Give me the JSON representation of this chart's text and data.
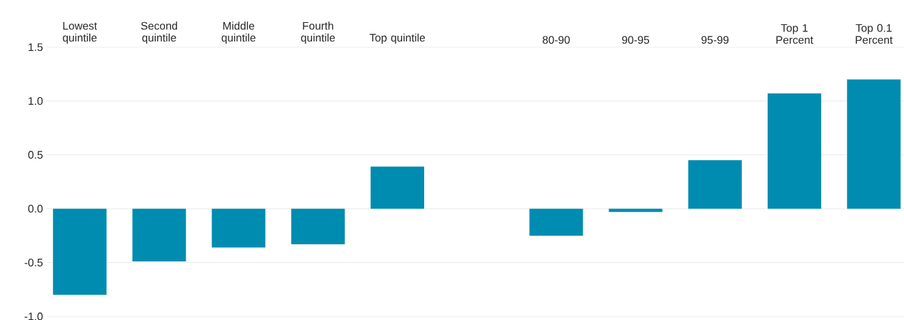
{
  "chart_data": {
    "type": "bar",
    "categories": [
      "Lowest quintile",
      "Second quintile",
      "Middle quintile",
      "Fourth quintile",
      "Top quintile",
      null,
      "80-90",
      "90-95",
      "95-99",
      "Top 1 Percent",
      "Top 0.1 Percent"
    ],
    "values": [
      -0.8,
      -0.49,
      -0.36,
      -0.33,
      0.39,
      null,
      -0.25,
      -0.03,
      0.45,
      1.07,
      1.2
    ],
    "color": "#008cb0",
    "ylim": [
      -1.0,
      1.5
    ],
    "yticks": [
      {
        "value": -1.0,
        "label": "-1.0"
      },
      {
        "value": -0.5,
        "label": "-0.5"
      },
      {
        "value": 0.0,
        "label": "0.0"
      },
      {
        "value": 0.5,
        "label": "0.5"
      },
      {
        "value": 1.0,
        "label": "1.0"
      },
      {
        "value": 1.5,
        "label": "1.5"
      }
    ],
    "grid": "y"
  }
}
